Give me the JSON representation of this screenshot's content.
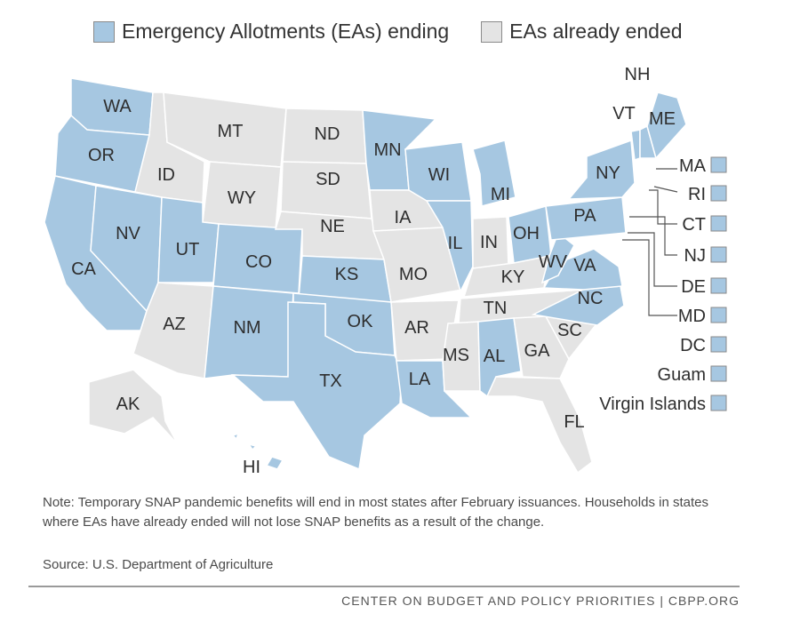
{
  "legend": [
    {
      "label": "Emergency Allotments (EAs) ending",
      "color": "#a6c7e1"
    },
    {
      "label": "EAs already ended",
      "color": "#e4e4e4"
    }
  ],
  "colors": {
    "ending": "#a6c7e1",
    "ended": "#e4e4e4",
    "border": "#ffffff",
    "leader": "#555555"
  },
  "map": {
    "states": [
      {
        "abbr": "WA",
        "status": "ending"
      },
      {
        "abbr": "OR",
        "status": "ending"
      },
      {
        "abbr": "CA",
        "status": "ending"
      },
      {
        "abbr": "NV",
        "status": "ending"
      },
      {
        "abbr": "ID",
        "status": "ended"
      },
      {
        "abbr": "MT",
        "status": "ended"
      },
      {
        "abbr": "WY",
        "status": "ended"
      },
      {
        "abbr": "UT",
        "status": "ending"
      },
      {
        "abbr": "CO",
        "status": "ending"
      },
      {
        "abbr": "AZ",
        "status": "ended"
      },
      {
        "abbr": "NM",
        "status": "ending"
      },
      {
        "abbr": "ND",
        "status": "ended"
      },
      {
        "abbr": "SD",
        "status": "ended"
      },
      {
        "abbr": "NE",
        "status": "ended"
      },
      {
        "abbr": "KS",
        "status": "ending"
      },
      {
        "abbr": "OK",
        "status": "ending"
      },
      {
        "abbr": "TX",
        "status": "ending"
      },
      {
        "abbr": "MN",
        "status": "ending"
      },
      {
        "abbr": "IA",
        "status": "ended"
      },
      {
        "abbr": "MO",
        "status": "ended"
      },
      {
        "abbr": "AR",
        "status": "ended"
      },
      {
        "abbr": "LA",
        "status": "ending"
      },
      {
        "abbr": "WI",
        "status": "ending"
      },
      {
        "abbr": "IL",
        "status": "ending"
      },
      {
        "abbr": "MI",
        "status": "ending"
      },
      {
        "abbr": "IN",
        "status": "ended"
      },
      {
        "abbr": "OH",
        "status": "ending"
      },
      {
        "abbr": "KY",
        "status": "ended"
      },
      {
        "abbr": "TN",
        "status": "ended"
      },
      {
        "abbr": "MS",
        "status": "ended"
      },
      {
        "abbr": "AL",
        "status": "ending"
      },
      {
        "abbr": "GA",
        "status": "ended"
      },
      {
        "abbr": "FL",
        "status": "ended"
      },
      {
        "abbr": "SC",
        "status": "ended"
      },
      {
        "abbr": "NC",
        "status": "ending"
      },
      {
        "abbr": "VA",
        "status": "ending"
      },
      {
        "abbr": "WV",
        "status": "ending"
      },
      {
        "abbr": "PA",
        "status": "ending"
      },
      {
        "abbr": "NY",
        "status": "ending"
      },
      {
        "abbr": "VT",
        "status": "ending"
      },
      {
        "abbr": "NH",
        "status": "ending"
      },
      {
        "abbr": "ME",
        "status": "ending"
      },
      {
        "abbr": "AK",
        "status": "ended"
      },
      {
        "abbr": "HI",
        "status": "ending"
      }
    ],
    "side_labels": [
      {
        "label": "MA",
        "status": "ending"
      },
      {
        "label": "RI",
        "status": "ending"
      },
      {
        "label": "CT",
        "status": "ending"
      },
      {
        "label": "NJ",
        "status": "ending"
      },
      {
        "label": "DE",
        "status": "ending"
      },
      {
        "label": "MD",
        "status": "ending"
      },
      {
        "label": "DC",
        "status": "ending"
      },
      {
        "label": "Guam",
        "status": "ending"
      },
      {
        "label": "Virgin Islands",
        "status": "ending"
      }
    ]
  },
  "note": "Note: Temporary SNAP pandemic benefits will end in most states after February issuances. Households in states where EAs have already ended will not lose SNAP benefits as a result of the change.",
  "source": "Source: U.S. Department of Agriculture",
  "footer": "CENTER ON BUDGET AND POLICY PRIORITIES | CBPP.ORG"
}
